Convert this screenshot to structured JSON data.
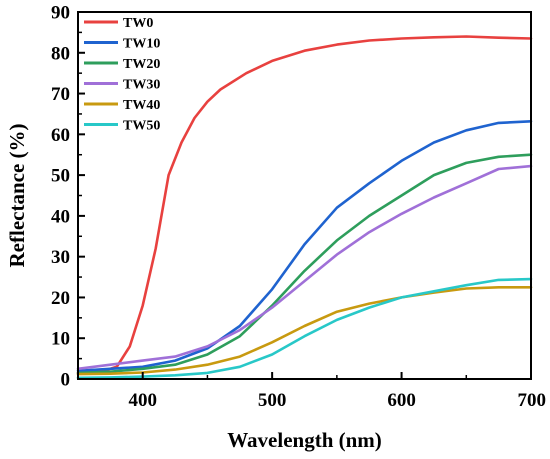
{
  "chart_data": {
    "type": "line",
    "title": "",
    "xlabel": "Wavelength (nm)",
    "ylabel": "Reflectance (%)",
    "xlim": [
      350,
      700
    ],
    "ylim": [
      0,
      90
    ],
    "xticks": [
      400,
      500,
      600,
      700
    ],
    "yticks": [
      0,
      10,
      20,
      30,
      40,
      50,
      60,
      70,
      80,
      90
    ],
    "grid": false,
    "legend": "top-left",
    "series": [
      {
        "name": "TW0",
        "color": "#e8413f",
        "points": [
          [
            350,
            1.5
          ],
          [
            370,
            2
          ],
          [
            380,
            3
          ],
          [
            390,
            8
          ],
          [
            400,
            18
          ],
          [
            410,
            32
          ],
          [
            420,
            50
          ],
          [
            430,
            58
          ],
          [
            440,
            64
          ],
          [
            450,
            68
          ],
          [
            460,
            71
          ],
          [
            480,
            75
          ],
          [
            500,
            78
          ],
          [
            525,
            80.5
          ],
          [
            550,
            82
          ],
          [
            575,
            83
          ],
          [
            600,
            83.5
          ],
          [
            625,
            83.8
          ],
          [
            650,
            84
          ],
          [
            675,
            83.7
          ],
          [
            700,
            83.5
          ]
        ]
      },
      {
        "name": "TW10",
        "color": "#1f63cf",
        "points": [
          [
            350,
            2
          ],
          [
            375,
            2.5
          ],
          [
            400,
            3
          ],
          [
            425,
            4.5
          ],
          [
            450,
            7.5
          ],
          [
            475,
            13
          ],
          [
            500,
            22
          ],
          [
            525,
            33
          ],
          [
            550,
            42
          ],
          [
            575,
            48
          ],
          [
            600,
            53.5
          ],
          [
            625,
            58
          ],
          [
            650,
            61
          ],
          [
            675,
            62.8
          ],
          [
            700,
            63.2
          ]
        ]
      },
      {
        "name": "TW20",
        "color": "#2e9e5c",
        "points": [
          [
            350,
            1.5
          ],
          [
            375,
            1.8
          ],
          [
            400,
            2.5
          ],
          [
            425,
            3.5
          ],
          [
            450,
            6
          ],
          [
            475,
            10.5
          ],
          [
            500,
            18
          ],
          [
            525,
            26.5
          ],
          [
            550,
            34
          ],
          [
            575,
            40
          ],
          [
            600,
            45
          ],
          [
            625,
            50
          ],
          [
            650,
            53
          ],
          [
            675,
            54.5
          ],
          [
            700,
            55
          ]
        ]
      },
      {
        "name": "TW30",
        "color": "#a070d8",
        "points": [
          [
            350,
            2.5
          ],
          [
            375,
            3.5
          ],
          [
            400,
            4.5
          ],
          [
            425,
            5.5
          ],
          [
            450,
            8
          ],
          [
            475,
            12
          ],
          [
            500,
            17.5
          ],
          [
            525,
            24
          ],
          [
            550,
            30.5
          ],
          [
            575,
            36
          ],
          [
            600,
            40.5
          ],
          [
            625,
            44.5
          ],
          [
            650,
            48
          ],
          [
            675,
            51.5
          ],
          [
            700,
            52.2
          ]
        ]
      },
      {
        "name": "TW40",
        "color": "#c89a10",
        "points": [
          [
            350,
            1.2
          ],
          [
            375,
            1.3
          ],
          [
            400,
            1.6
          ],
          [
            425,
            2.3
          ],
          [
            450,
            3.5
          ],
          [
            475,
            5.5
          ],
          [
            500,
            9
          ],
          [
            525,
            13
          ],
          [
            550,
            16.5
          ],
          [
            575,
            18.5
          ],
          [
            600,
            20
          ],
          [
            625,
            21.2
          ],
          [
            650,
            22.2
          ],
          [
            675,
            22.5
          ],
          [
            700,
            22.5
          ]
        ]
      },
      {
        "name": "TW50",
        "color": "#28c8c8",
        "points": [
          [
            350,
            0.3
          ],
          [
            375,
            0.4
          ],
          [
            400,
            0.6
          ],
          [
            425,
            0.9
          ],
          [
            450,
            1.5
          ],
          [
            475,
            3
          ],
          [
            500,
            6
          ],
          [
            525,
            10.5
          ],
          [
            550,
            14.5
          ],
          [
            575,
            17.5
          ],
          [
            600,
            20
          ],
          [
            625,
            21.5
          ],
          [
            650,
            23
          ],
          [
            675,
            24.3
          ],
          [
            700,
            24.5
          ]
        ]
      }
    ]
  }
}
